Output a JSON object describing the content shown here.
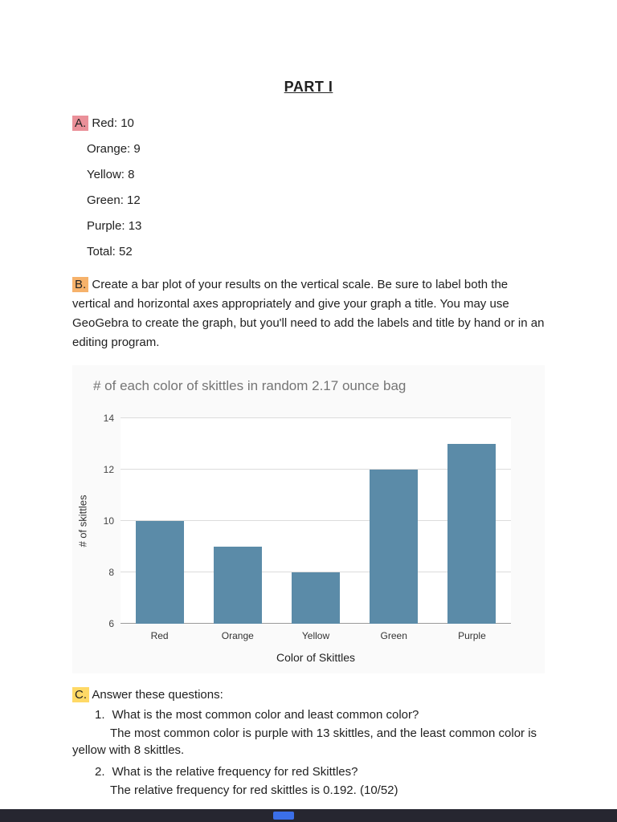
{
  "page": {
    "title": "PART I"
  },
  "section_a": {
    "label": "A.",
    "lines": [
      "Red: 10",
      "Orange: 9",
      "Yellow: 8",
      "Green: 12",
      "Purple: 13",
      "Total: 52"
    ]
  },
  "section_b": {
    "label": "B.",
    "text": "Create a bar plot of your results on the vertical scale. Be sure to label both the vertical and horizontal axes appropriately and give your graph a title. You may use GeoGebra to create the graph, but you'll need to add the labels and title by hand or in an editing program."
  },
  "chart_data": {
    "type": "bar",
    "title": "# of each color of skittles in random 2.17 ounce bag",
    "categories": [
      "Red",
      "Orange",
      "Yellow",
      "Green",
      "Purple"
    ],
    "values": [
      10,
      9,
      8,
      12,
      13
    ],
    "xlabel": "Color of Skittles",
    "ylabel": "# of skittles",
    "ylim": [
      6,
      14
    ],
    "yticks": [
      6,
      8,
      10,
      12,
      14
    ],
    "bar_color": "#5b8ba8",
    "grid": true,
    "legend": "none"
  },
  "section_c": {
    "label": "C.",
    "intro": "Answer these questions:",
    "questions": [
      {
        "number": "1.",
        "question": "What is the most common color and least common color?",
        "answer": "The most common color is purple with 13 skittles, and the least common color is yellow with 8 skittles."
      },
      {
        "number": "2.",
        "question": "What is the relative frequency for red Skittles?",
        "answer": "The relative frequency for red skittles is 0.192. (10/52)"
      }
    ]
  },
  "viewer_footer": {
    "bar_color": "#262630",
    "accent_color": "#3b6fe8"
  }
}
